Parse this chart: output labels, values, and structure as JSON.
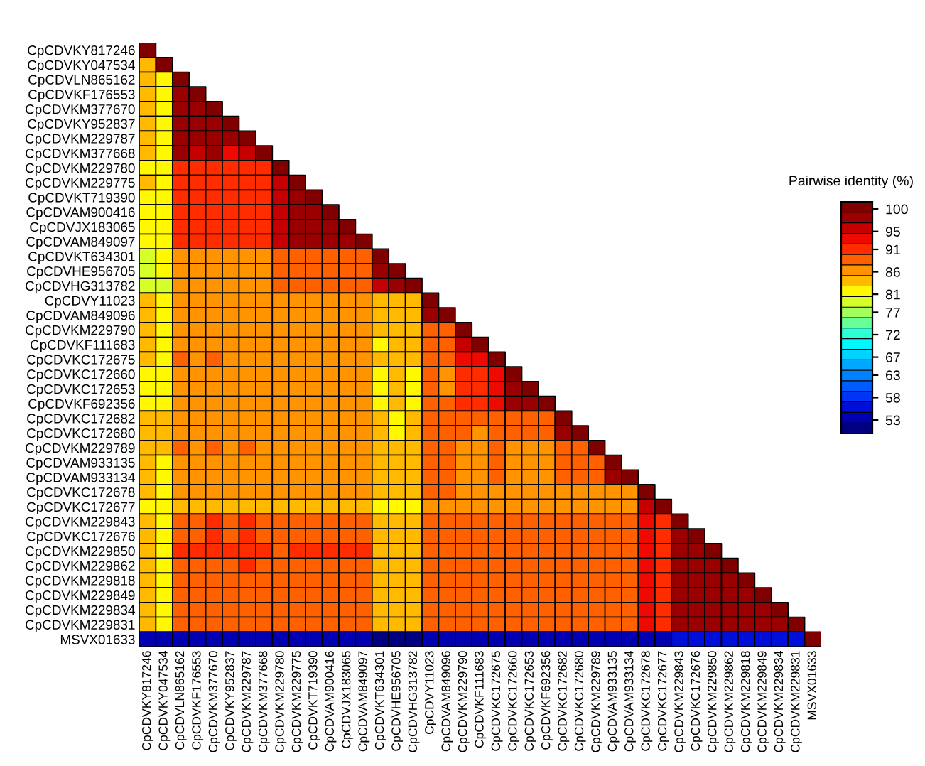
{
  "chart_data": {
    "type": "heatmap",
    "clabel": "Pairwise identity (%)",
    "categories": [
      "CpCDVKY817246",
      "CpCDVKY047534",
      "CpCDVLN865162",
      "CpCDVKF176553",
      "CpCDVKM377670",
      "CpCDVKY952837",
      "CpCDVKM229787",
      "CpCDVKM377668",
      "CpCDVKM229780",
      "CpCDVKM229775",
      "CpCDVKT719390",
      "CpCDVAM900416",
      "CpCDVJX183065",
      "CpCDVAM849097",
      "CpCDVKT634301",
      "CpCDVHE956705",
      "CpCDVHG313782",
      "CpCDVY11023",
      "CpCDVAM849096",
      "CpCDVKM229790",
      "CpCDVKF111683",
      "CpCDVKC172675",
      "CpCDVKC172660",
      "CpCDVKC172653",
      "CpCDVKF692356",
      "CpCDVKC172682",
      "CpCDVKC172680",
      "CpCDVKM229789",
      "CpCDVAM933135",
      "CpCDVAM933134",
      "CpCDVKC172678",
      "CpCDVKC172677",
      "CpCDVKM229843",
      "CpCDVKC172676",
      "CpCDVKM229850",
      "CpCDVKM229862",
      "CpCDVKM229818",
      "CpCDVKM229849",
      "CpCDVKM229834",
      "CpCDVKM229831",
      "MSVX01633"
    ],
    "y_categories": [
      "CpCDVKY817246",
      "CpCDVKY047534",
      "CpCDVLN865162",
      "CpCDVKF176553",
      "CpCDVKM377670",
      "CpCDVKY952837",
      "CpCDVKM229787",
      "CpCDVKM377668",
      "CpCDVKM229780",
      "CpCDVKM229775",
      "CpCDVKT719390",
      "CpCDVAM900416",
      "CpCDVJX183065",
      "CpCDVAM849097",
      "CpCDVKT634301",
      "CpCDVHE956705",
      "CpCDVHG313782",
      "CpCDVY11023",
      "CpCDVAM849096",
      "CpCDVKM229790",
      "CpCDVKF111683",
      "CpCDVKC172675",
      "CpCDVKC172660",
      "CpCDVKC172653",
      "CpCDVKF692356",
      "CpCDVKC172682",
      "CpCDVKC172680",
      "CpCDVKM229789",
      "CpCDVAM933135",
      "CpCDVAM933134",
      "CpCDVKC172678",
      "CpCDVKC172677",
      "CpCDVKM229843",
      "CpCDVKC172676",
      "CpCDVKM229850",
      "CpCDVKM229862",
      "CpCDVKM229818",
      "CpCDVKM229849",
      "CpCDVKM229834",
      "CpCDVKM229831",
      "MSVX01633"
    ],
    "clim": [
      50,
      101.6
    ],
    "cticks": [
      53,
      58,
      63,
      67,
      72,
      77,
      81,
      86,
      91,
      95,
      100
    ],
    "cells": [
      [
        100,
        null,
        null,
        null,
        null,
        null,
        null,
        null,
        null,
        null,
        null,
        null,
        null,
        null,
        null,
        null,
        null,
        null,
        null,
        null,
        null,
        null,
        null,
        null,
        null,
        null,
        null,
        null,
        null,
        null,
        null,
        null,
        null,
        null,
        null,
        null,
        null,
        null,
        null,
        null,
        null
      ],
      [
        85,
        100,
        null,
        null,
        null,
        null,
        null,
        null,
        null,
        null,
        null,
        null,
        null,
        null,
        null,
        null,
        null,
        null,
        null,
        null,
        null,
        null,
        null,
        null,
        null,
        null,
        null,
        null,
        null,
        null,
        null,
        null,
        null,
        null,
        null,
        null,
        null,
        null,
        null,
        null,
        null
      ],
      [
        83,
        82,
        100,
        null,
        null,
        null,
        null,
        null,
        null,
        null,
        null,
        null,
        null,
        null,
        null,
        null,
        null,
        null,
        null,
        null,
        null,
        null,
        null,
        null,
        null,
        null,
        null,
        null,
        null,
        null,
        null,
        null,
        null,
        null,
        null,
        null,
        null,
        null,
        null,
        null,
        null
      ],
      [
        83,
        82,
        99,
        100,
        null,
        null,
        null,
        null,
        null,
        null,
        null,
        null,
        null,
        null,
        null,
        null,
        null,
        null,
        null,
        null,
        null,
        null,
        null,
        null,
        null,
        null,
        null,
        null,
        null,
        null,
        null,
        null,
        null,
        null,
        null,
        null,
        null,
        null,
        null,
        null,
        null
      ],
      [
        83,
        82,
        99,
        99,
        100,
        null,
        null,
        null,
        null,
        null,
        null,
        null,
        null,
        null,
        null,
        null,
        null,
        null,
        null,
        null,
        null,
        null,
        null,
        null,
        null,
        null,
        null,
        null,
        null,
        null,
        null,
        null,
        null,
        null,
        null,
        null,
        null,
        null,
        null,
        null,
        null
      ],
      [
        83,
        82,
        98,
        97,
        98,
        100,
        null,
        null,
        null,
        null,
        null,
        null,
        null,
        null,
        null,
        null,
        null,
        null,
        null,
        null,
        null,
        null,
        null,
        null,
        null,
        null,
        null,
        null,
        null,
        null,
        null,
        null,
        null,
        null,
        null,
        null,
        null,
        null,
        null,
        null,
        null
      ],
      [
        83,
        82,
        97,
        97,
        97,
        98,
        100,
        null,
        null,
        null,
        null,
        null,
        null,
        null,
        null,
        null,
        null,
        null,
        null,
        null,
        null,
        null,
        null,
        null,
        null,
        null,
        null,
        null,
        null,
        null,
        null,
        null,
        null,
        null,
        null,
        null,
        null,
        null,
        null,
        null,
        null
      ],
      [
        83,
        82,
        97,
        96,
        97,
        94,
        95,
        100,
        null,
        null,
        null,
        null,
        null,
        null,
        null,
        null,
        null,
        null,
        null,
        null,
        null,
        null,
        null,
        null,
        null,
        null,
        null,
        null,
        null,
        null,
        null,
        null,
        null,
        null,
        null,
        null,
        null,
        null,
        null,
        null,
        null
      ],
      [
        82,
        81,
        92,
        92,
        92,
        91,
        92,
        92,
        100,
        null,
        null,
        null,
        null,
        null,
        null,
        null,
        null,
        null,
        null,
        null,
        null,
        null,
        null,
        null,
        null,
        null,
        null,
        null,
        null,
        null,
        null,
        null,
        null,
        null,
        null,
        null,
        null,
        null,
        null,
        null,
        null
      ],
      [
        83,
        81,
        92,
        91,
        92,
        91,
        92,
        92,
        95,
        100,
        null,
        null,
        null,
        null,
        null,
        null,
        null,
        null,
        null,
        null,
        null,
        null,
        null,
        null,
        null,
        null,
        null,
        null,
        null,
        null,
        null,
        null,
        null,
        null,
        null,
        null,
        null,
        null,
        null,
        null,
        null
      ],
      [
        82,
        81,
        92,
        92,
        91,
        92,
        91,
        92,
        96,
        97,
        100,
        null,
        null,
        null,
        null,
        null,
        null,
        null,
        null,
        null,
        null,
        null,
        null,
        null,
        null,
        null,
        null,
        null,
        null,
        null,
        null,
        null,
        null,
        null,
        null,
        null,
        null,
        null,
        null,
        null,
        null
      ],
      [
        82,
        81,
        92,
        92,
        91,
        92,
        91,
        92,
        95,
        97,
        98,
        100,
        null,
        null,
        null,
        null,
        null,
        null,
        null,
        null,
        null,
        null,
        null,
        null,
        null,
        null,
        null,
        null,
        null,
        null,
        null,
        null,
        null,
        null,
        null,
        null,
        null,
        null,
        null,
        null,
        null
      ],
      [
        82,
        81,
        92,
        91,
        92,
        91,
        92,
        92,
        95,
        97,
        97,
        98,
        100,
        null,
        null,
        null,
        null,
        null,
        null,
        null,
        null,
        null,
        null,
        null,
        null,
        null,
        null,
        null,
        null,
        null,
        null,
        null,
        null,
        null,
        null,
        null,
        null,
        null,
        null,
        null,
        null
      ],
      [
        82,
        81,
        92,
        91,
        91,
        92,
        91,
        92,
        95,
        97,
        97,
        98,
        98,
        100,
        null,
        null,
        null,
        null,
        null,
        null,
        null,
        null,
        null,
        null,
        null,
        null,
        null,
        null,
        null,
        null,
        null,
        null,
        null,
        null,
        null,
        null,
        null,
        null,
        null,
        null,
        null
      ],
      [
        80,
        81,
        87,
        87,
        87,
        87,
        87,
        87,
        88,
        88,
        88,
        88,
        88,
        88,
        100,
        null,
        null,
        null,
        null,
        null,
        null,
        null,
        null,
        null,
        null,
        null,
        null,
        null,
        null,
        null,
        null,
        null,
        null,
        null,
        null,
        null,
        null,
        null,
        null,
        null,
        null
      ],
      [
        80,
        81,
        87,
        87,
        87,
        87,
        87,
        87,
        88,
        89,
        88,
        88,
        88,
        88,
        97,
        100,
        null,
        null,
        null,
        null,
        null,
        null,
        null,
        null,
        null,
        null,
        null,
        null,
        null,
        null,
        null,
        null,
        null,
        null,
        null,
        null,
        null,
        null,
        null,
        null,
        null
      ],
      [
        80,
        80,
        87,
        87,
        87,
        87,
        87,
        87,
        88,
        89,
        88,
        88,
        88,
        88,
        96,
        99,
        100,
        null,
        null,
        null,
        null,
        null,
        null,
        null,
        null,
        null,
        null,
        null,
        null,
        null,
        null,
        null,
        null,
        null,
        null,
        null,
        null,
        null,
        null,
        null,
        null
      ],
      [
        84,
        82,
        87,
        87,
        87,
        87,
        87,
        87,
        86,
        86,
        86,
        86,
        86,
        86,
        83,
        83,
        83,
        100,
        null,
        null,
        null,
        null,
        null,
        null,
        null,
        null,
        null,
        null,
        null,
        null,
        null,
        null,
        null,
        null,
        null,
        null,
        null,
        null,
        null,
        null,
        null
      ],
      [
        84,
        82,
        87,
        87,
        87,
        87,
        87,
        87,
        86,
        86,
        86,
        86,
        86,
        86,
        83,
        83,
        83,
        99,
        100,
        null,
        null,
        null,
        null,
        null,
        null,
        null,
        null,
        null,
        null,
        null,
        null,
        null,
        null,
        null,
        null,
        null,
        null,
        null,
        null,
        null,
        null
      ],
      [
        83,
        81,
        87,
        87,
        87,
        87,
        87,
        87,
        86,
        86,
        86,
        86,
        86,
        86,
        83,
        83,
        83,
        88,
        88,
        100,
        null,
        null,
        null,
        null,
        null,
        null,
        null,
        null,
        null,
        null,
        null,
        null,
        null,
        null,
        null,
        null,
        null,
        null,
        null,
        null,
        null
      ],
      [
        83,
        81,
        87,
        87,
        87,
        87,
        87,
        87,
        86,
        86,
        86,
        86,
        86,
        86,
        82,
        83,
        83,
        88,
        88,
        96,
        100,
        null,
        null,
        null,
        null,
        null,
        null,
        null,
        null,
        null,
        null,
        null,
        null,
        null,
        null,
        null,
        null,
        null,
        null,
        null,
        null
      ],
      [
        83,
        81,
        88,
        87,
        88,
        87,
        87,
        87,
        87,
        86,
        86,
        86,
        86,
        86,
        83,
        83,
        83,
        88,
        88,
        94,
        93,
        100,
        null,
        null,
        null,
        null,
        null,
        null,
        null,
        null,
        null,
        null,
        null,
        null,
        null,
        null,
        null,
        null,
        null,
        null,
        null
      ],
      [
        82,
        81,
        87,
        87,
        87,
        87,
        87,
        87,
        86,
        86,
        86,
        86,
        86,
        86,
        82,
        83,
        82,
        88,
        87,
        92,
        91,
        94,
        100,
        null,
        null,
        null,
        null,
        null,
        null,
        null,
        null,
        null,
        null,
        null,
        null,
        null,
        null,
        null,
        null,
        null,
        null
      ],
      [
        82,
        81,
        87,
        87,
        87,
        87,
        87,
        87,
        86,
        86,
        86,
        86,
        86,
        86,
        82,
        83,
        82,
        88,
        87,
        91,
        91,
        93,
        98,
        100,
        null,
        null,
        null,
        null,
        null,
        null,
        null,
        null,
        null,
        null,
        null,
        null,
        null,
        null,
        null,
        null,
        null
      ],
      [
        82,
        81,
        87,
        87,
        87,
        87,
        87,
        87,
        86,
        86,
        86,
        86,
        86,
        86,
        82,
        83,
        82,
        88,
        88,
        91,
        91,
        94,
        99,
        98,
        100,
        null,
        null,
        null,
        null,
        null,
        null,
        null,
        null,
        null,
        null,
        null,
        null,
        null,
        null,
        null,
        null
      ],
      [
        84,
        83,
        87,
        87,
        87,
        87,
        87,
        87,
        86,
        86,
        86,
        86,
        86,
        86,
        83,
        82,
        83,
        88,
        88,
        88,
        88,
        88,
        88,
        88,
        88,
        100,
        null,
        null,
        null,
        null,
        null,
        null,
        null,
        null,
        null,
        null,
        null,
        null,
        null,
        null,
        null
      ],
      [
        84,
        83,
        87,
        87,
        87,
        87,
        87,
        87,
        86,
        86,
        86,
        86,
        86,
        86,
        83,
        82,
        83,
        88,
        88,
        88,
        87,
        88,
        88,
        88,
        88,
        99,
        100,
        null,
        null,
        null,
        null,
        null,
        null,
        null,
        null,
        null,
        null,
        null,
        null,
        null,
        null
      ],
      [
        84,
        83,
        88,
        87,
        88,
        87,
        88,
        87,
        86,
        86,
        86,
        86,
        86,
        86,
        84,
        84,
        84,
        88,
        88,
        87,
        87,
        88,
        87,
        87,
        87,
        88,
        88,
        100,
        null,
        null,
        null,
        null,
        null,
        null,
        null,
        null,
        null,
        null,
        null,
        null,
        null
      ],
      [
        84,
        82,
        87,
        87,
        87,
        87,
        87,
        87,
        86,
        86,
        86,
        86,
        86,
        86,
        84,
        84,
        84,
        88,
        88,
        87,
        87,
        88,
        87,
        87,
        87,
        88,
        88,
        88,
        100,
        null,
        null,
        null,
        null,
        null,
        null,
        null,
        null,
        null,
        null,
        null,
        null
      ],
      [
        84,
        82,
        87,
        87,
        87,
        87,
        87,
        87,
        86,
        86,
        86,
        86,
        86,
        86,
        84,
        84,
        84,
        88,
        88,
        87,
        87,
        88,
        87,
        87,
        87,
        88,
        88,
        88,
        99,
        100,
        null,
        null,
        null,
        null,
        null,
        null,
        null,
        null,
        null,
        null,
        null
      ],
      [
        84,
        82,
        87,
        87,
        87,
        87,
        87,
        87,
        86,
        86,
        86,
        86,
        86,
        86,
        84,
        84,
        84,
        88,
        88,
        87,
        87,
        87,
        87,
        87,
        87,
        87,
        87,
        87,
        87,
        87,
        100,
        null,
        null,
        null,
        null,
        null,
        null,
        null,
        null,
        null,
        null
      ],
      [
        82,
        81,
        85,
        85,
        85,
        85,
        85,
        85,
        85,
        85,
        85,
        85,
        85,
        84,
        81,
        81,
        81,
        86,
        86,
        86,
        86,
        86,
        86,
        86,
        86,
        86,
        86,
        86,
        86,
        86,
        95,
        100,
        null,
        null,
        null,
        null,
        null,
        null,
        null,
        null,
        null
      ],
      [
        83,
        82,
        89,
        89,
        90,
        89,
        90,
        89,
        89,
        88,
        88,
        88,
        88,
        88,
        84,
        84,
        84,
        89,
        89,
        89,
        89,
        89,
        89,
        89,
        89,
        89,
        88,
        88,
        88,
        88,
        93,
        92,
        100,
        null,
        null,
        null,
        null,
        null,
        null,
        null,
        null
      ],
      [
        83,
        82,
        89,
        89,
        90,
        89,
        90,
        89,
        89,
        88,
        88,
        88,
        88,
        88,
        84,
        84,
        84,
        89,
        89,
        89,
        89,
        89,
        89,
        89,
        89,
        89,
        88,
        88,
        88,
        88,
        93,
        92,
        98,
        100,
        null,
        null,
        null,
        null,
        null,
        null,
        null
      ],
      [
        84,
        82,
        90,
        91,
        90,
        90,
        91,
        90,
        89,
        90,
        91,
        90,
        91,
        90,
        85,
        85,
        85,
        89,
        89,
        89,
        89,
        89,
        89,
        89,
        89,
        89,
        88,
        88,
        88,
        88,
        93,
        92,
        97,
        97,
        100,
        null,
        null,
        null,
        null,
        null,
        null
      ],
      [
        83,
        82,
        89,
        89,
        89,
        89,
        90,
        89,
        89,
        88,
        88,
        88,
        88,
        88,
        84,
        84,
        84,
        89,
        89,
        89,
        89,
        89,
        89,
        89,
        89,
        89,
        88,
        88,
        88,
        88,
        93,
        92,
        97,
        97,
        97,
        100,
        null,
        null,
        null,
        null,
        null
      ],
      [
        83,
        82,
        89,
        89,
        89,
        89,
        89,
        89,
        88,
        88,
        88,
        88,
        88,
        88,
        84,
        84,
        84,
        89,
        89,
        89,
        89,
        89,
        89,
        89,
        89,
        89,
        88,
        88,
        88,
        88,
        93,
        92,
        97,
        97,
        97,
        98,
        100,
        null,
        null,
        null,
        null
      ],
      [
        83,
        82,
        89,
        89,
        89,
        89,
        89,
        89,
        88,
        88,
        88,
        88,
        88,
        88,
        84,
        84,
        84,
        89,
        89,
        89,
        89,
        89,
        89,
        89,
        89,
        89,
        88,
        88,
        88,
        88,
        93,
        92,
        97,
        97,
        97,
        98,
        98,
        100,
        null,
        null,
        null
      ],
      [
        83,
        82,
        89,
        89,
        89,
        89,
        89,
        89,
        88,
        88,
        88,
        88,
        88,
        88,
        84,
        84,
        84,
        89,
        89,
        89,
        89,
        89,
        89,
        89,
        89,
        89,
        88,
        88,
        88,
        88,
        93,
        92,
        97,
        97,
        97,
        98,
        98,
        99,
        100,
        null,
        null
      ],
      [
        83,
        82,
        89,
        89,
        89,
        89,
        89,
        89,
        88,
        88,
        88,
        88,
        88,
        88,
        84,
        84,
        84,
        89,
        89,
        89,
        89,
        89,
        89,
        89,
        89,
        89,
        88,
        88,
        88,
        88,
        93,
        92,
        97,
        97,
        97,
        98,
        98,
        99,
        99,
        100,
        null
      ],
      [
        53,
        53,
        53,
        53,
        53,
        53,
        53,
        53,
        53,
        53,
        53,
        53,
        53,
        53,
        52,
        52,
        52,
        53,
        53,
        53,
        53,
        53,
        53,
        53,
        53,
        54,
        54,
        54,
        54,
        54,
        54,
        54,
        55,
        55,
        55,
        55,
        55,
        55,
        55,
        55,
        100
      ]
    ]
  }
}
